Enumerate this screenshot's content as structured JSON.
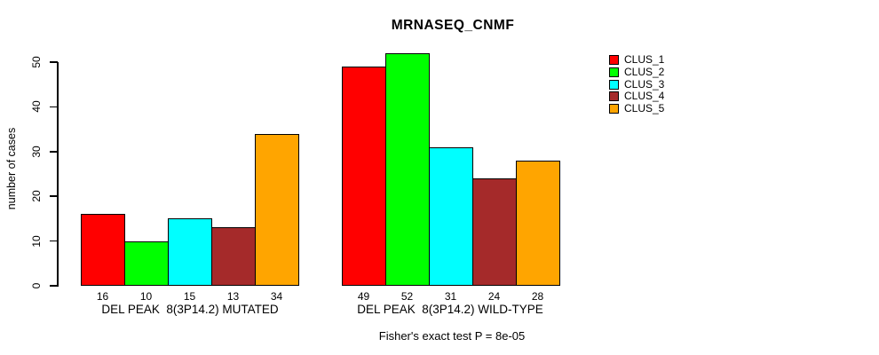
{
  "title": "MRNASEQ_CNMF",
  "legend": [
    {
      "label": "CLUS_1",
      "color": "#FF0000"
    },
    {
      "label": "CLUS_2",
      "color": "#00FF00"
    },
    {
      "label": "CLUS_3",
      "color": "#00FFFF"
    },
    {
      "label": "CLUS_4",
      "color": "#A52A2A"
    },
    {
      "label": "CLUS_5",
      "color": "#FFA500"
    }
  ],
  "chart_data": {
    "type": "bar",
    "title": "MRNASEQ_CNMF",
    "ylabel": "number of cases",
    "ylim": [
      0,
      50
    ],
    "yticks": [
      0,
      10,
      20,
      30,
      40,
      50
    ],
    "grid": false,
    "legend_position": "right",
    "series": [
      "CLUS_1",
      "CLUS_2",
      "CLUS_3",
      "CLUS_4",
      "CLUS_5"
    ],
    "colors": [
      "#FF0000",
      "#00FF00",
      "#00FFFF",
      "#A52A2A",
      "#FFA500"
    ],
    "groups": [
      {
        "label": "DEL PEAK  8(3P14.2) MUTATED",
        "values": [
          16,
          10,
          15,
          13,
          34
        ]
      },
      {
        "label": "DEL PEAK  8(3P14.2) WILD-TYPE",
        "values": [
          49,
          52,
          31,
          24,
          28
        ]
      }
    ],
    "annotation": "Fisher's exact test P = 8e-05"
  }
}
